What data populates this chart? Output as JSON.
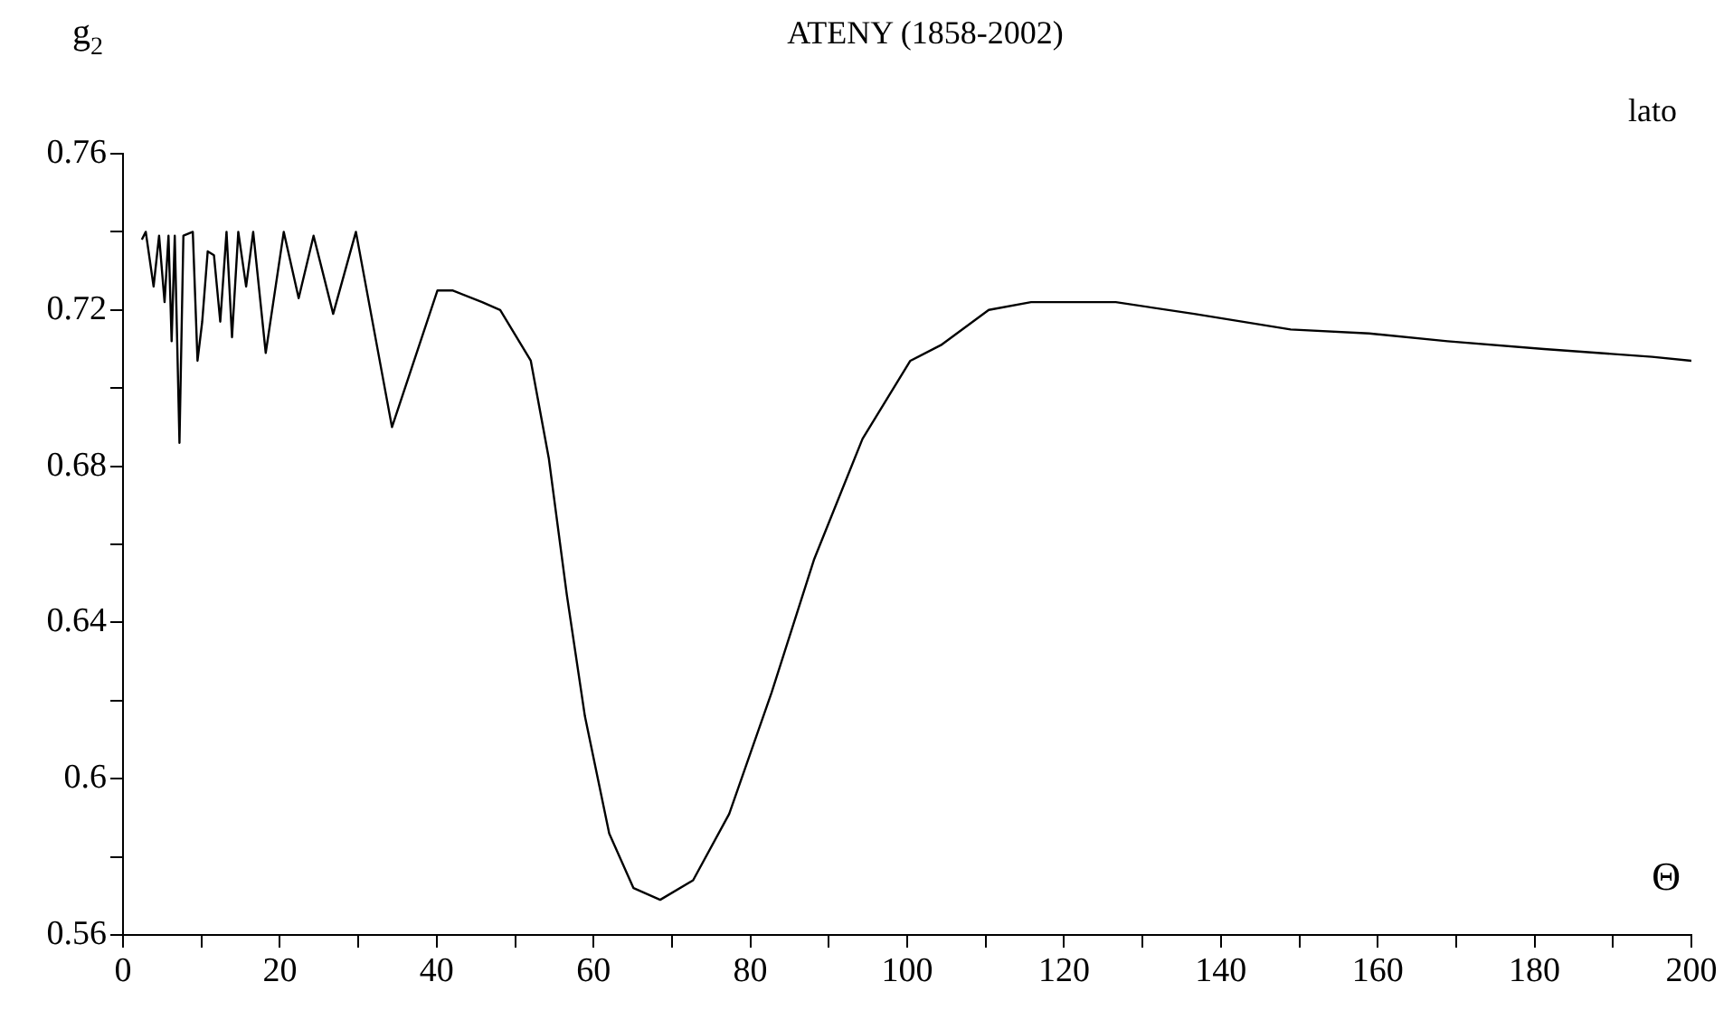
{
  "chart_data": {
    "type": "line",
    "title": "ATENY (1858-2002)",
    "xlabel": "Θ",
    "ylabel": "g$_{2}$",
    "annotations": [
      "lato"
    ],
    "xlim": [
      0,
      200
    ],
    "ylim": [
      0.56,
      0.76
    ],
    "xticks": [
      0,
      {
        "value": 10,
        "label": null
      },
      20,
      {
        "value": 30,
        "label": null
      },
      40,
      {
        "value": 50,
        "label": null
      },
      60,
      {
        "value": 70,
        "label": null
      },
      80,
      {
        "value": 90,
        "label": null
      },
      100,
      {
        "value": 110,
        "label": null
      },
      120,
      {
        "value": 130,
        "label": null
      },
      140,
      {
        "value": 150,
        "label": null
      },
      160,
      {
        "value": 170,
        "label": null
      },
      180,
      {
        "value": 190,
        "label": null
      },
      200
    ],
    "yticks": [
      0.56,
      {
        "value": 0.58,
        "label": null
      },
      0.6,
      {
        "value": 0.62,
        "label": null
      },
      0.64,
      {
        "value": 0.66,
        "label": null
      },
      0.68,
      {
        "value": 0.7,
        "label": null
      },
      0.72,
      {
        "value": 0.74,
        "label": null
      },
      0.76
    ],
    "grid": false,
    "legend": false,
    "marker": "none",
    "line_style": "solid",
    "series": [
      {
        "color": "#000000",
        "x": [
          2.4,
          2.9,
          3.9,
          4.6,
          5.3,
          5.8,
          6.2,
          6.6,
          7.2,
          7.7,
          8.9,
          9.5,
          10.1,
          10.8,
          11.6,
          12.4,
          13.2,
          13.9,
          14.7,
          15.7,
          16.6,
          18.2,
          20.5,
          22.4,
          24.3,
          26.8,
          29.7,
          34.3,
          40.1,
          42,
          45.8,
          48.1,
          52,
          54.3,
          56.6,
          58.9,
          62,
          65.1,
          68.5,
          72.7,
          77.3,
          82.7,
          88.1,
          94.3,
          100.4,
          104.3,
          110.4,
          115.8,
          126.6,
          136.6,
          148.9,
          158.9,
          168.9,
          181.2,
          195,
          200
        ],
        "values": [
          0.738,
          0.74,
          0.726,
          0.739,
          0.722,
          0.739,
          0.712,
          0.739,
          0.686,
          0.739,
          0.74,
          0.707,
          0.717,
          0.735,
          0.734,
          0.717,
          0.74,
          0.713,
          0.74,
          0.726,
          0.74,
          0.709,
          0.74,
          0.723,
          0.739,
          0.719,
          0.74,
          0.69,
          0.725,
          0.725,
          0.722,
          0.72,
          0.707,
          0.682,
          0.647,
          0.616,
          0.586,
          0.572,
          0.569,
          0.574,
          0.591,
          0.622,
          0.656,
          0.687,
          0.707,
          0.711,
          0.72,
          0.722,
          0.722,
          0.719,
          0.715,
          0.714,
          0.712,
          0.71,
          0.708,
          0.707
        ]
      }
    ]
  }
}
